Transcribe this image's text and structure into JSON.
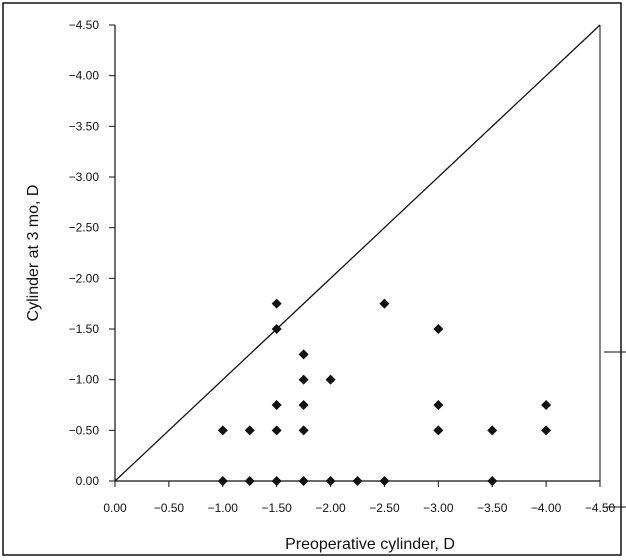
{
  "chart_data": {
    "type": "scatter",
    "xlabel": "Preoperative cylinder, D",
    "ylabel": "Cylinder at 3 mo, D",
    "xlim": [
      0,
      -4.5
    ],
    "ylim": [
      0,
      -4.5
    ],
    "x_ticks": [
      "0.00",
      "−0.50",
      "−1.00",
      "−1.50",
      "−2.00",
      "−2.50",
      "−3.00",
      "−3.50",
      "−4.00",
      "−4.50"
    ],
    "y_ticks": [
      "0.00",
      "−0.50",
      "−1.00",
      "−1.50",
      "−2.00",
      "−2.50",
      "−3.00",
      "−3.50",
      "−4.00",
      "−4.50"
    ],
    "x_tick_values": [
      0,
      -0.5,
      -1,
      -1.5,
      -2,
      -2.5,
      -3,
      -3.5,
      -4,
      -4.5
    ],
    "y_tick_values": [
      0,
      -0.5,
      -1,
      -1.5,
      -2,
      -2.5,
      -3,
      -3.5,
      -4,
      -4.5
    ],
    "reference_line": {
      "from": [
        0,
        0
      ],
      "to": [
        -4.5,
        -4.5
      ]
    },
    "marker": "diamond",
    "marker_color": "#111111",
    "grid": false,
    "points": [
      {
        "x": -1.0,
        "y": 0
      },
      {
        "x": -1.0,
        "y": -0.5
      },
      {
        "x": -1.25,
        "y": 0
      },
      {
        "x": -1.25,
        "y": -0.5
      },
      {
        "x": -1.5,
        "y": 0
      },
      {
        "x": -1.5,
        "y": -0.5
      },
      {
        "x": -1.5,
        "y": -0.75
      },
      {
        "x": -1.5,
        "y": -1.5
      },
      {
        "x": -1.5,
        "y": -1.75
      },
      {
        "x": -1.75,
        "y": 0
      },
      {
        "x": -1.75,
        "y": -0.5
      },
      {
        "x": -1.75,
        "y": -0.75
      },
      {
        "x": -1.75,
        "y": -1.0
      },
      {
        "x": -1.75,
        "y": -1.25
      },
      {
        "x": -2.0,
        "y": 0
      },
      {
        "x": -2.0,
        "y": -1.0
      },
      {
        "x": -2.25,
        "y": 0
      },
      {
        "x": -2.5,
        "y": 0
      },
      {
        "x": -2.5,
        "y": -1.75
      },
      {
        "x": -3.0,
        "y": -0.5
      },
      {
        "x": -3.0,
        "y": -0.75
      },
      {
        "x": -3.0,
        "y": -1.5
      },
      {
        "x": -3.5,
        "y": 0
      },
      {
        "x": -3.5,
        "y": -0.5
      },
      {
        "x": -4.0,
        "y": -0.5
      },
      {
        "x": -4.0,
        "y": -0.75
      }
    ]
  }
}
